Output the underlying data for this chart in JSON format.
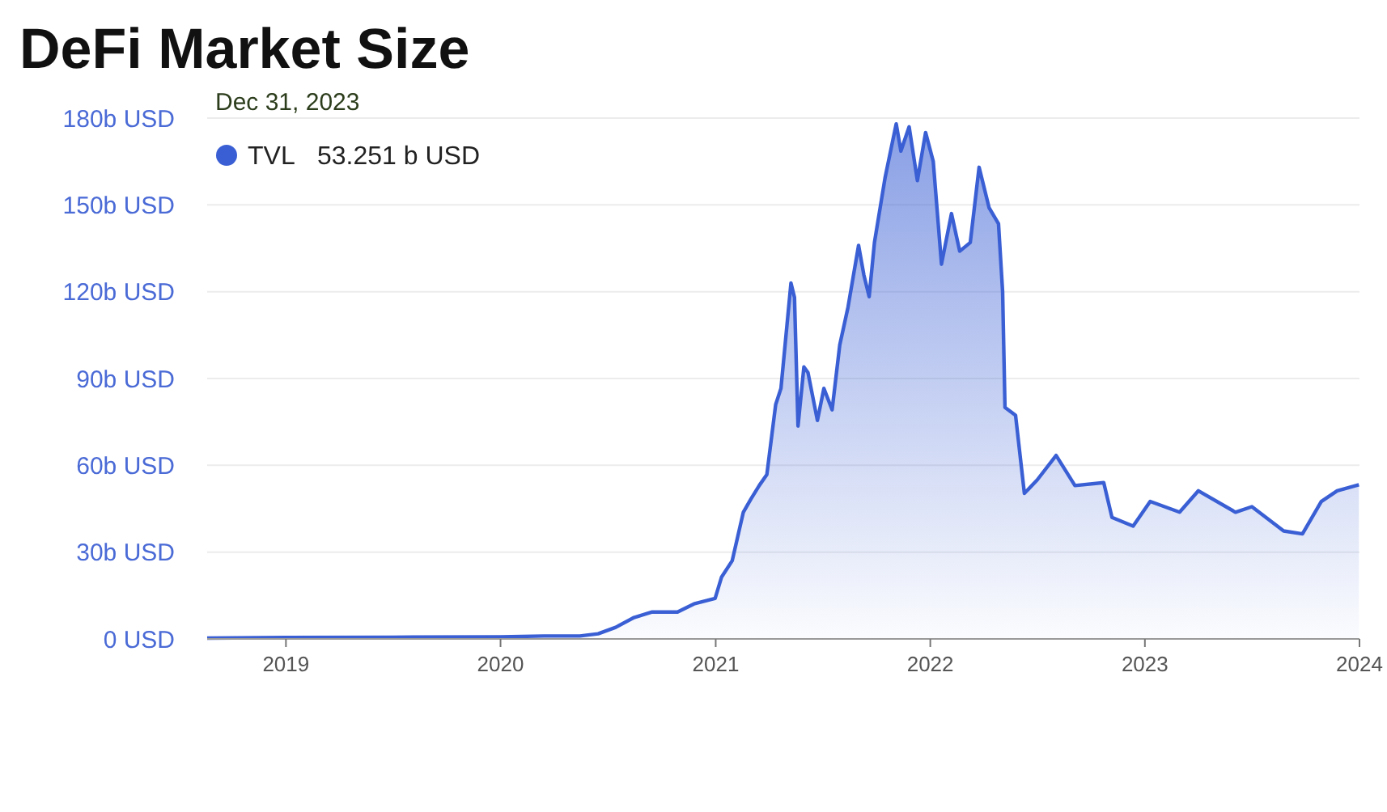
{
  "chart_data": {
    "type": "area",
    "title": "DeFi Market Size",
    "legend": "top left",
    "grid": "y",
    "annotations": [
      "Dec 31, 2023",
      "53.251 b USD"
    ],
    "xlim": [
      "2018-08-20",
      "2024-01-01"
    ],
    "xticks": [
      {
        "value": "2019-01-01",
        "label": "2019"
      },
      {
        "value": "2020-01-01",
        "label": "2020"
      },
      {
        "value": "2021-01-01",
        "label": "2021"
      },
      {
        "value": "2022-01-01",
        "label": "2022"
      },
      {
        "value": "2023-01-01",
        "label": "2023"
      },
      {
        "value": "2024-01-01",
        "label": "2024"
      }
    ],
    "ylim": [
      0,
      180
    ],
    "yticks": [
      {
        "value": 0,
        "label": "0 USD"
      },
      {
        "value": 30,
        "label": "30b USD"
      },
      {
        "value": 60,
        "label": "60b USD"
      },
      {
        "value": 90,
        "label": "90b USD"
      },
      {
        "value": 120,
        "label": "120b USD"
      },
      {
        "value": 150,
        "label": "150b USD"
      },
      {
        "value": 180,
        "label": "180b USD"
      }
    ],
    "series": [
      {
        "name": "TVL",
        "color": "#3a5fd4",
        "x": [
          "2018-08-20",
          "2019-01-01",
          "2019-07-01",
          "2020-01-01",
          "2020-03-15",
          "2020-05-15",
          "2020-06-15",
          "2020-07-15",
          "2020-08-15",
          "2020-09-15",
          "2020-10-28",
          "2020-11-25",
          "2020-12-31",
          "2021-01-11",
          "2021-01-29",
          "2021-02-17",
          "2021-03-02",
          "2021-03-16",
          "2021-03-29",
          "2021-04-13",
          "2021-04-22",
          "2021-05-09",
          "2021-05-15",
          "2021-05-21",
          "2021-05-31",
          "2021-06-07",
          "2021-06-23",
          "2021-07-04",
          "2021-07-18",
          "2021-07-31",
          "2021-08-14",
          "2021-09-01",
          "2021-09-10",
          "2021-09-19",
          "2021-09-28",
          "2021-10-16",
          "2021-11-04",
          "2021-11-12",
          "2021-11-26",
          "2021-12-10",
          "2021-12-24",
          "2022-01-06",
          "2022-01-20",
          "2022-02-06",
          "2022-02-20",
          "2022-03-10",
          "2022-03-25",
          "2022-04-11",
          "2022-04-27",
          "2022-05-04",
          "2022-05-08",
          "2022-05-26",
          "2022-06-10",
          "2022-07-02",
          "2022-08-03",
          "2022-09-04",
          "2022-10-23",
          "2022-11-06",
          "2022-12-12",
          "2023-01-10",
          "2023-03-01",
          "2023-04-02",
          "2023-06-04",
          "2023-07-02",
          "2023-08-25",
          "2023-09-26",
          "2023-10-28",
          "2023-11-24",
          "2023-12-31"
        ],
        "values": [
          0.3,
          0.5,
          0.6,
          0.7,
          1,
          1,
          1.8,
          4,
          7.4,
          9.3,
          9.3,
          12.1,
          14,
          21.4,
          27,
          43.8,
          48.4,
          53,
          56.8,
          81,
          86.6,
          123,
          118,
          73.6,
          94,
          92,
          75.5,
          86.6,
          79.2,
          101.6,
          114.6,
          136,
          125.8,
          118.3,
          137,
          159.3,
          178,
          168.6,
          177,
          158.4,
          175,
          165,
          129.5,
          147,
          134,
          137,
          163,
          149,
          143.5,
          120,
          80,
          77.3,
          50.3,
          55,
          63.4,
          53,
          54,
          42,
          39,
          47.5,
          43.8,
          51.2,
          43.8,
          45.7,
          37.3,
          36.3,
          47.5,
          51.2,
          53.3
        ]
      }
    ]
  }
}
